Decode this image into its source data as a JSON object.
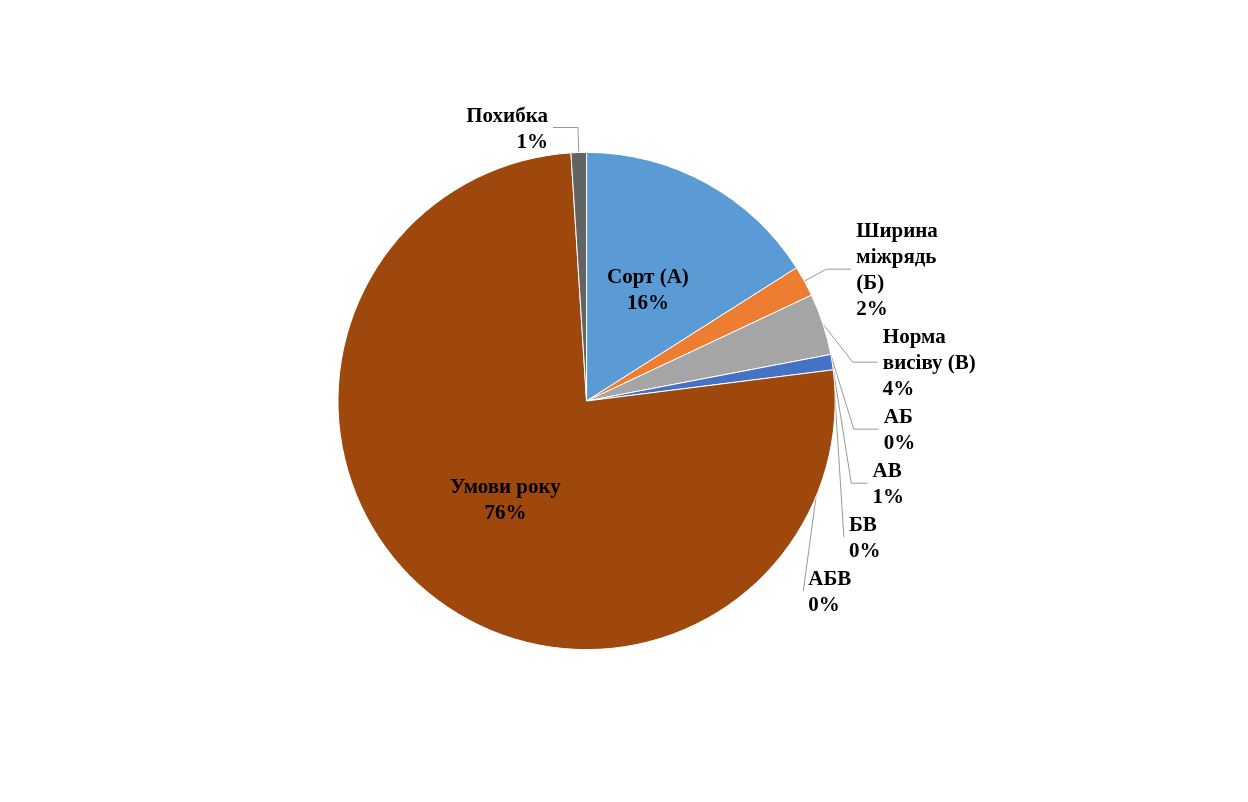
{
  "chart_data": {
    "type": "pie",
    "categories": [
      "Сорт (А)",
      "Ширина міжрядь (Б)",
      "Норма висіву (В)",
      "АБ",
      "АВ",
      "БВ",
      "АБВ",
      "Умови року",
      "Похибка"
    ],
    "values": [
      16,
      2,
      4,
      0,
      1,
      0,
      0,
      76,
      1
    ],
    "value_labels": [
      "16%",
      "2%",
      "4%",
      "0%",
      "1%",
      "0%",
      "0%",
      "76%",
      "1%"
    ],
    "colors": [
      "#5b9bd5",
      "#ed7d31",
      "#a5a5a5",
      "#ffc000",
      "#4472c4",
      "#70ad47",
      "#264478",
      "#9e480e",
      "#636363"
    ],
    "legend": false
  }
}
